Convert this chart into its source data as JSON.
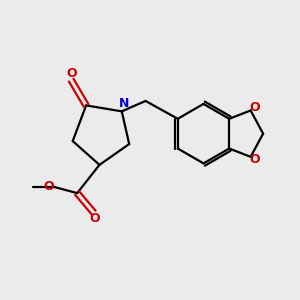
{
  "bg_color": "#ebebeb",
  "bond_color": "#000000",
  "N_color": "#0000cc",
  "O_color": "#cc0000",
  "line_width": 1.6,
  "font_size": 8.5,
  "fig_size": [
    3.0,
    3.0
  ],
  "dpi": 100,
  "xlim": [
    0,
    10
  ],
  "ylim": [
    0,
    10
  ]
}
